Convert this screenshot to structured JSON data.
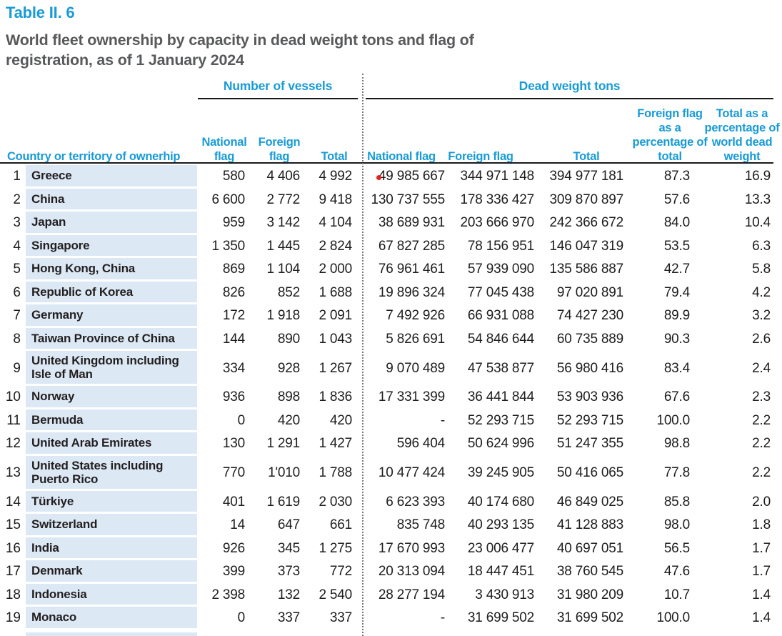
{
  "table_label": "Table II. 6",
  "title": {
    "line1": "World fleet ownership by capacity in dead weight tons and flag of",
    "line2": "registration, as of 1 January 2024"
  },
  "colors": {
    "accent_blue": "#189BD7",
    "title_gray": "#58595B",
    "row_highlight": "#DCE9F5",
    "marker_red": "#E2231A"
  },
  "header": {
    "group_vessels": "Number of vessels",
    "group_dwt": "Dead weight tons",
    "col_country": "Country or territory of ownerhip",
    "col_vessels_national": "National flag",
    "col_vessels_foreign": "Foreign flag",
    "col_vessels_total": "Total",
    "col_dwt_national": "National flag",
    "col_dwt_foreign": "Foreign flag",
    "col_dwt_total": "Total",
    "col_pct_foreign": "Foreign flag as a percentage of total",
    "col_pct_total": "Total as a percentage of world dead weight"
  },
  "table": {
    "rows": [
      {
        "rank": "1",
        "country": "Greece",
        "v_national": "580",
        "v_foreign": "4 406",
        "v_total": "4 992",
        "d_national": "49 985 667",
        "d_foreign": "344 971 148",
        "d_total": "394 977 181",
        "pct_foreign": "87.3",
        "pct_total": "16.9"
      },
      {
        "rank": "2",
        "country": "China",
        "v_national": "6 600",
        "v_foreign": "2 772",
        "v_total": "9 418",
        "d_national": "130 737 555",
        "d_foreign": "178 336 427",
        "d_total": "309 870 897",
        "pct_foreign": "57.6",
        "pct_total": "13.3"
      },
      {
        "rank": "3",
        "country": "Japan",
        "v_national": "959",
        "v_foreign": "3 142",
        "v_total": "4 104",
        "d_national": "38 689 931",
        "d_foreign": "203 666 970",
        "d_total": "242 366 672",
        "pct_foreign": "84.0",
        "pct_total": "10.4"
      },
      {
        "rank": "4",
        "country": "Singapore",
        "v_national": "1 350",
        "v_foreign": "1 445",
        "v_total": "2 824",
        "d_national": "67 827 285",
        "d_foreign": "78 156 951",
        "d_total": "146 047 319",
        "pct_foreign": "53.5",
        "pct_total": "6.3"
      },
      {
        "rank": "5",
        "country": "Hong Kong, China",
        "v_national": "869",
        "v_foreign": "1 104",
        "v_total": "2 000",
        "d_national": "76 961 461",
        "d_foreign": "57 939 090",
        "d_total": "135 586 887",
        "pct_foreign": "42.7",
        "pct_total": "5.8"
      },
      {
        "rank": "6",
        "country": "Republic of Korea",
        "v_national": "826",
        "v_foreign": "852",
        "v_total": "1 688",
        "d_national": "19 896 324",
        "d_foreign": "77 045 438",
        "d_total": "97 020 891",
        "pct_foreign": "79.4",
        "pct_total": "4.2"
      },
      {
        "rank": "7",
        "country": "Germany",
        "v_national": "172",
        "v_foreign": "1 918",
        "v_total": "2 091",
        "d_national": "7 492 926",
        "d_foreign": "66 931 088",
        "d_total": "74 427 230",
        "pct_foreign": "89.9",
        "pct_total": "3.2"
      },
      {
        "rank": "8",
        "country": "Taiwan Province of China",
        "v_national": "144",
        "v_foreign": "890",
        "v_total": "1 043",
        "d_national": "5 826 691",
        "d_foreign": "54 846 644",
        "d_total": "60 735 889",
        "pct_foreign": "90.3",
        "pct_total": "2.6"
      },
      {
        "rank": "9",
        "country": "United Kingdom including Isle of Man",
        "v_national": "334",
        "v_foreign": "928",
        "v_total": "1 267",
        "d_national": "9 070 489",
        "d_foreign": "47 538 877",
        "d_total": "56 980 416",
        "pct_foreign": "83.4",
        "pct_total": "2.4"
      },
      {
        "rank": "10",
        "country": "Norway",
        "v_national": "936",
        "v_foreign": "898",
        "v_total": "1 836",
        "d_national": "17 331 399",
        "d_foreign": "36 441 844",
        "d_total": "53 903 936",
        "pct_foreign": "67.6",
        "pct_total": "2.3"
      },
      {
        "rank": "11",
        "country": "Bermuda",
        "v_national": "0",
        "v_foreign": "420",
        "v_total": "420",
        "d_national": "-",
        "d_foreign": "52 293 715",
        "d_total": "52 293 715",
        "pct_foreign": "100.0",
        "pct_total": "2.2"
      },
      {
        "rank": "12",
        "country": "United Arab Emirates",
        "v_national": "130",
        "v_foreign": "1 291",
        "v_total": "1 427",
        "d_national": "596 404",
        "d_foreign": "50 624 996",
        "d_total": "51 247 355",
        "pct_foreign": "98.8",
        "pct_total": "2.2"
      },
      {
        "rank": "13",
        "country": "United States including Puerto Rico",
        "v_national": "770",
        "v_foreign": "1'010",
        "v_total": "1 788",
        "d_national": "10 477 424",
        "d_foreign": "39 245 905",
        "d_total": "50 416 065",
        "pct_foreign": "77.8",
        "pct_total": "2.2"
      },
      {
        "rank": "14",
        "country": "Türkiye",
        "v_national": "401",
        "v_foreign": "1 619",
        "v_total": "2 030",
        "d_national": "6 623 393",
        "d_foreign": "40 174 680",
        "d_total": "46 849 025",
        "pct_foreign": "85.8",
        "pct_total": "2.0"
      },
      {
        "rank": "15",
        "country": "Switzerland",
        "v_national": "14",
        "v_foreign": "647",
        "v_total": "661",
        "d_national": "835 748",
        "d_foreign": "40 293 135",
        "d_total": "41 128 883",
        "pct_foreign": "98.0",
        "pct_total": "1.8"
      },
      {
        "rank": "16",
        "country": "India",
        "v_national": "926",
        "v_foreign": "345",
        "v_total": "1 275",
        "d_national": "17 670 993",
        "d_foreign": "23 006 477",
        "d_total": "40 697 051",
        "pct_foreign": "56.5",
        "pct_total": "1.7"
      },
      {
        "rank": "17",
        "country": "Denmark",
        "v_national": "399",
        "v_foreign": "373",
        "v_total": "772",
        "d_national": "20 313 094",
        "d_foreign": "18 447 451",
        "d_total": "38 760 545",
        "pct_foreign": "47.6",
        "pct_total": "1.7"
      },
      {
        "rank": "18",
        "country": "Indonesia",
        "v_national": "2 398",
        "v_foreign": "132",
        "v_total": "2 540",
        "d_national": "28 277 194",
        "d_foreign": "3 430 913",
        "d_total": "31 980 209",
        "pct_foreign": "10.7",
        "pct_total": "1.4"
      },
      {
        "rank": "19",
        "country": "Monaco",
        "v_national": "0",
        "v_foreign": "337",
        "v_total": "337",
        "d_national": "-",
        "d_foreign": "31 699 502",
        "d_total": "31 699 502",
        "pct_foreign": "100.0",
        "pct_total": "1.4"
      }
    ]
  }
}
